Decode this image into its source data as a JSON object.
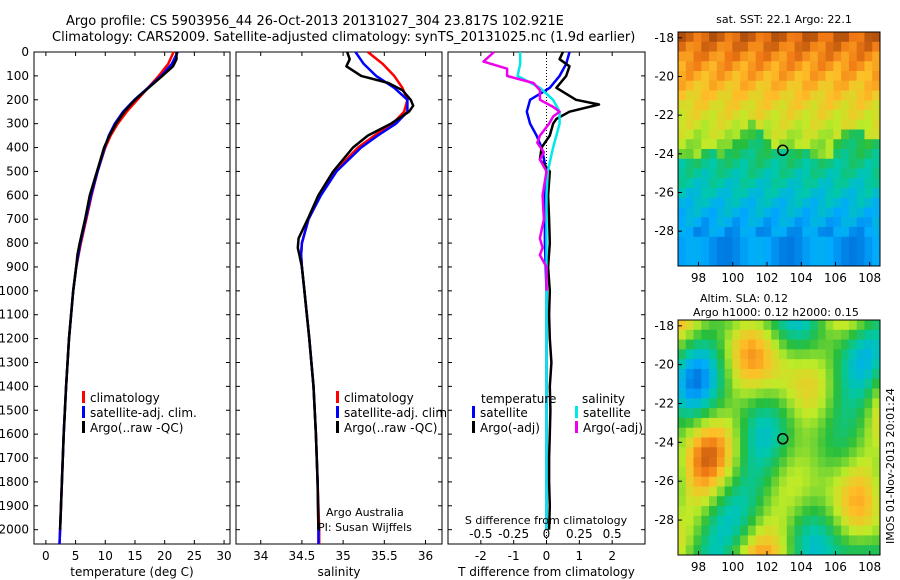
{
  "header": {
    "line1": "Argo profile: CS 5903956_44 26-Oct-2013 20131027_304 23.817S 102.921E",
    "line2": "Climatology: CARS2009. Satellite-adjusted climatology: synTS_20131025.nc (1.9d earlier)"
  },
  "timestamp": "IMOS 01-Nov-2013 20:01:24",
  "colors": {
    "climatology": "#ff0000",
    "satellite": "#0000ff",
    "argo": "#000000",
    "salinity_satellite": "#00e8e8",
    "salinity_argo": "#ee00ee"
  },
  "chart_data": [
    {
      "id": "temperature",
      "type": "line",
      "xlabel": "temperature (deg C)",
      "ylabel": "depth",
      "xlim": [
        -2,
        31
      ],
      "ylim": [
        2060,
        0
      ],
      "xticks": [
        0,
        5,
        10,
        15,
        20,
        25,
        30
      ],
      "yticks": [
        0,
        100,
        200,
        300,
        400,
        500,
        600,
        700,
        800,
        900,
        1000,
        1100,
        1200,
        1300,
        1400,
        1500,
        1600,
        1700,
        1800,
        1900,
        2000
      ],
      "legend": [
        "climatology",
        "satellite-adj. clim.",
        "Argo(..raw -QC)"
      ],
      "series": [
        {
          "name": "climatology",
          "color": "#ff0000",
          "depth": [
            0,
            50,
            100,
            150,
            200,
            250,
            300,
            350,
            400,
            500,
            600,
            700,
            800,
            900,
            1000,
            1200,
            1400,
            1600,
            1800,
            2000,
            2060
          ],
          "values": [
            21.5,
            20.6,
            19.0,
            17.2,
            15.4,
            13.6,
            12.1,
            10.9,
            10.0,
            8.7,
            7.7,
            6.8,
            5.9,
            5.1,
            4.6,
            3.9,
            3.4,
            3.0,
            2.7,
            2.4,
            2.3
          ]
        },
        {
          "name": "satellite-adj. clim.",
          "color": "#0000ff",
          "depth": [
            0,
            50,
            100,
            150,
            200,
            250,
            300,
            350,
            400,
            500,
            600,
            700,
            800,
            900,
            1000,
            1200,
            1400,
            1600,
            1800,
            2000,
            2060
          ],
          "values": [
            22.2,
            21.2,
            19.4,
            17.2,
            14.9,
            13.0,
            11.6,
            10.6,
            9.9,
            8.7,
            7.6,
            6.7,
            5.8,
            5.1,
            4.6,
            3.9,
            3.4,
            3.0,
            2.7,
            2.4,
            2.3
          ]
        },
        {
          "name": "Argo(..raw -QC)",
          "color": "#000000",
          "depth": [
            0,
            30,
            60,
            100,
            150,
            200,
            250,
            300,
            350,
            400,
            500,
            600,
            700,
            800,
            850,
            900,
            1000,
            1200,
            1400,
            1600,
            1800,
            2000
          ],
          "values": [
            22.0,
            22.0,
            21.4,
            19.6,
            17.3,
            15.0,
            13.2,
            11.8,
            10.7,
            9.8,
            8.6,
            7.4,
            6.6,
            5.7,
            5.3,
            5.1,
            4.6,
            3.9,
            3.4,
            3.0,
            2.7,
            2.4
          ]
        }
      ]
    },
    {
      "id": "salinity",
      "type": "line",
      "xlabel": "salinity",
      "ylabel": "depth",
      "xlim": [
        33.7,
        36.2
      ],
      "ylim": [
        2060,
        0
      ],
      "xticks": [
        34,
        34.5,
        35,
        35.5,
        36
      ],
      "legend": [
        "climatology",
        "satellite-adj. clim.",
        "Argo(..raw -QC)"
      ],
      "annotation": [
        "Argo Australia",
        "PI: Susan Wijffels"
      ],
      "series": [
        {
          "name": "climatology",
          "color": "#ff0000",
          "depth": [
            0,
            50,
            100,
            150,
            200,
            250,
            300,
            350,
            400,
            500,
            600,
            700,
            800,
            850,
            900,
            1000,
            1200,
            1400,
            1600,
            1800,
            2000,
            2060
          ],
          "values": [
            35.3,
            35.48,
            35.62,
            35.72,
            35.78,
            35.74,
            35.6,
            35.38,
            35.18,
            34.9,
            34.72,
            34.58,
            34.5,
            34.49,
            34.5,
            34.53,
            34.59,
            34.64,
            34.67,
            34.69,
            34.71,
            34.71
          ]
        },
        {
          "name": "satellite-adj. clim.",
          "color": "#0000ff",
          "depth": [
            0,
            50,
            100,
            150,
            200,
            250,
            300,
            350,
            400,
            500,
            600,
            700,
            800,
            850,
            900,
            1000,
            1200,
            1400,
            1600,
            1800,
            2000,
            2060
          ],
          "values": [
            35.15,
            35.25,
            35.4,
            35.62,
            35.78,
            35.78,
            35.64,
            35.42,
            35.22,
            34.92,
            34.73,
            34.58,
            34.5,
            34.49,
            34.5,
            34.53,
            34.59,
            34.64,
            34.67,
            34.69,
            34.7,
            34.7
          ]
        },
        {
          "name": "Argo(..raw -QC)",
          "color": "#000000",
          "depth": [
            0,
            30,
            60,
            100,
            130,
            160,
            200,
            225,
            250,
            300,
            350,
            400,
            500,
            600,
            700,
            780,
            820,
            850,
            900,
            1000,
            1200,
            1400,
            1600,
            1800,
            2000
          ],
          "values": [
            35.05,
            35.08,
            35.04,
            35.22,
            35.55,
            35.72,
            35.82,
            35.85,
            35.8,
            35.58,
            35.3,
            35.12,
            34.88,
            34.7,
            34.57,
            34.46,
            34.45,
            34.47,
            34.5,
            34.53,
            34.59,
            34.64,
            34.67,
            34.69,
            34.7
          ]
        }
      ]
    },
    {
      "id": "difference",
      "type": "line",
      "xlabel": "T difference from climatology",
      "x2label": "S difference from climatology",
      "ylabel": "depth",
      "xlim": [
        -3,
        3
      ],
      "ylim": [
        2060,
        0
      ],
      "xticks": [
        -2,
        -1,
        0,
        1,
        2
      ],
      "x2ticks": [
        "-0.5",
        "-0.25",
        "0",
        "0.25",
        "0.5"
      ],
      "legend_temperature_title": "temperature",
      "legend_salinity_title": "salinity",
      "legend": [
        "satellite",
        "Argo(-adj)",
        "satellite",
        "Argo(-adj)"
      ],
      "series": [
        {
          "name": "temperature satellite",
          "color": "#0000ff",
          "depth": [
            0,
            50,
            100,
            150,
            200,
            250,
            300,
            350,
            400,
            500,
            600,
            700,
            800,
            1000,
            1200,
            1500,
            2000
          ],
          "values": [
            0.7,
            0.6,
            0.4,
            0.1,
            -0.5,
            -0.6,
            -0.5,
            -0.3,
            -0.15,
            0.0,
            -0.05,
            -0.05,
            -0.05,
            0.0,
            0.0,
            0.0,
            0.0
          ]
        },
        {
          "name": "temperature Argo(-adj)",
          "color": "#000000",
          "depth": [
            0,
            30,
            60,
            100,
            150,
            200,
            220,
            250,
            280,
            300,
            350,
            400,
            450,
            500,
            600,
            700,
            800,
            900,
            1000,
            1100,
            1200,
            1300,
            1400,
            1500,
            1600,
            1700,
            1800,
            1900,
            2000
          ],
          "values": [
            0.5,
            0.4,
            0.7,
            0.6,
            0.3,
            0.9,
            1.6,
            0.7,
            0.3,
            0.2,
            0.1,
            -0.15,
            -0.2,
            0.1,
            0.05,
            0.08,
            0.1,
            0.05,
            0.1,
            0.08,
            0.1,
            0.15,
            0.1,
            0.12,
            0.1,
            0.08,
            0.08,
            0.1,
            0.08
          ]
        },
        {
          "name": "salinity satellite",
          "color": "#00e8e8",
          "depth": [
            0,
            50,
            100,
            150,
            200,
            250,
            300,
            400,
            500,
            600,
            700,
            800,
            1000,
            1200,
            1500,
            2000
          ],
          "values": [
            -0.2,
            -0.2,
            -0.22,
            -0.05,
            0.05,
            0.1,
            0.1,
            0.05,
            0.01,
            0.0,
            0.0,
            0.0,
            0.0,
            0.0,
            0.0,
            0.0
          ]
        },
        {
          "name": "salinity Argo(-adj)",
          "color": "#ee00ee",
          "depth": [
            0,
            40,
            70,
            100,
            130,
            160,
            200,
            230,
            250,
            270,
            300,
            350,
            380,
            420,
            450,
            500,
            600,
            700,
            780,
            820,
            850,
            900,
            1000
          ],
          "values": [
            -0.4,
            -0.48,
            -0.3,
            -0.3,
            -0.1,
            -0.05,
            -0.05,
            0.05,
            0.1,
            0.05,
            0.02,
            -0.05,
            -0.07,
            -0.02,
            -0.05,
            0.0,
            -0.03,
            -0.02,
            -0.05,
            -0.03,
            -0.05,
            0.0,
            0.0
          ]
        }
      ]
    },
    {
      "id": "sst-map",
      "type": "heatmap",
      "title": "sat. SST: 22.1  Argo: 22.1",
      "xticks": [
        98,
        100,
        102,
        104,
        106,
        108
      ],
      "yticks": [
        -18,
        -20,
        -22,
        -24,
        -26,
        -28
      ],
      "xlim": [
        96.8,
        108.6
      ],
      "ylim": [
        -29.8,
        -17.7
      ],
      "marker": {
        "lon": 102.921,
        "lat": -23.817
      }
    },
    {
      "id": "sla-map",
      "type": "heatmap",
      "title": [
        "Altim. SLA: 0.12",
        "Argo h1000: 0.12 h2000: 0.15"
      ],
      "xticks": [
        98,
        100,
        102,
        104,
        106,
        108
      ],
      "yticks": [
        -18,
        -20,
        -22,
        -24,
        -26,
        -28
      ],
      "xlim": [
        96.8,
        108.6
      ],
      "ylim": [
        -29.8,
        -17.7
      ],
      "marker": {
        "lon": 102.921,
        "lat": -23.817
      }
    }
  ]
}
